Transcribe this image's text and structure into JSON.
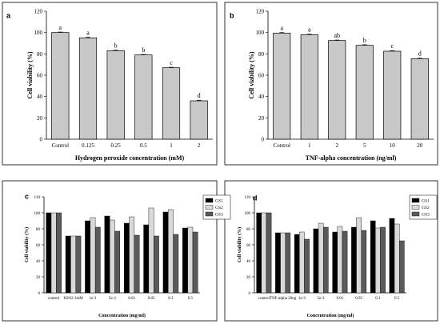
{
  "colors": {
    "bar_single": "#c8c8c8",
    "g1": "#000000",
    "g2": "#d9d9d9",
    "g3": "#5a5a5a",
    "axis": "#000000"
  },
  "chart_data": [
    {
      "panel_label": "a",
      "type": "bar",
      "categories": [
        "Control",
        "0.125",
        "0.25",
        "0.5",
        "1",
        "2"
      ],
      "values": [
        100,
        95,
        83,
        79,
        67,
        36
      ],
      "errors": [
        0.5,
        0.8,
        0.6,
        0.5,
        0.5,
        0.6
      ],
      "letters": [
        "a",
        "a",
        "b",
        "b",
        "c",
        "d"
      ],
      "xlabel": "Hydrogen peroxide concentration (mM)",
      "ylabel": "Cell viability (%)",
      "ylim": [
        0,
        120
      ],
      "yticks": [
        0,
        20,
        40,
        60,
        80,
        100,
        120
      ],
      "grid": false
    },
    {
      "panel_label": "b",
      "type": "bar",
      "categories": [
        "Control",
        "1",
        "2",
        "5",
        "10",
        "20"
      ],
      "values": [
        99.5,
        98,
        92.5,
        88,
        82.5,
        75.5
      ],
      "errors": [
        0.6,
        0.6,
        0.5,
        0.6,
        0.6,
        0.8
      ],
      "letters": [
        "a",
        "a",
        "ab",
        "b",
        "c",
        "d"
      ],
      "xlabel": "TNF-alpha concentration (ng/ml)",
      "ylabel": "Cell viability (%)",
      "ylim": [
        0,
        120
      ],
      "yticks": [
        0,
        20,
        40,
        60,
        80,
        100,
        120
      ],
      "grid": false
    },
    {
      "panel_label": "c",
      "type": "bar",
      "categories": [
        "control",
        "H2O2 1mM",
        "1e-3",
        "5e-3",
        "0.01",
        "0.05",
        "0.1",
        "0.5"
      ],
      "series": [
        {
          "name": "GS1",
          "values": [
            100,
            71,
            90,
            96,
            87,
            85,
            101,
            81
          ]
        },
        {
          "name": "GS2",
          "values": [
            100,
            71,
            94,
            91,
            95,
            106,
            104,
            82
          ]
        },
        {
          "name": "GS3",
          "values": [
            100,
            71,
            82,
            77,
            72,
            71,
            73,
            76
          ]
        }
      ],
      "xlabel": "Concentration (mg/ml)",
      "ylabel": "Cell viability (%)",
      "ylim": [
        0,
        120
      ],
      "yticks": [
        0,
        20,
        40,
        60,
        80,
        100,
        120
      ],
      "legend": "top-right",
      "grid": false
    },
    {
      "panel_label": "d",
      "type": "bar",
      "categories": [
        "control",
        "TNF-alpha 20ng",
        "1e-3",
        "5e-3",
        "0.01",
        "0.05",
        "0.1",
        "0.5"
      ],
      "series": [
        {
          "name": "GS1",
          "values": [
            100,
            75,
            73,
            80,
            76,
            82,
            90,
            93
          ]
        },
        {
          "name": "GS2",
          "values": [
            100,
            75,
            76,
            87,
            83,
            94,
            81,
            86
          ]
        },
        {
          "name": "GS3",
          "values": [
            100,
            75,
            67,
            82,
            77,
            78,
            82,
            65
          ]
        }
      ],
      "xlabel": "Concentration (mg/ml)",
      "ylabel": "Cell viability (%)",
      "ylim": [
        0,
        120
      ],
      "yticks": [
        0,
        20,
        40,
        60,
        80,
        100,
        120
      ],
      "legend": "top-right",
      "grid": false
    }
  ]
}
